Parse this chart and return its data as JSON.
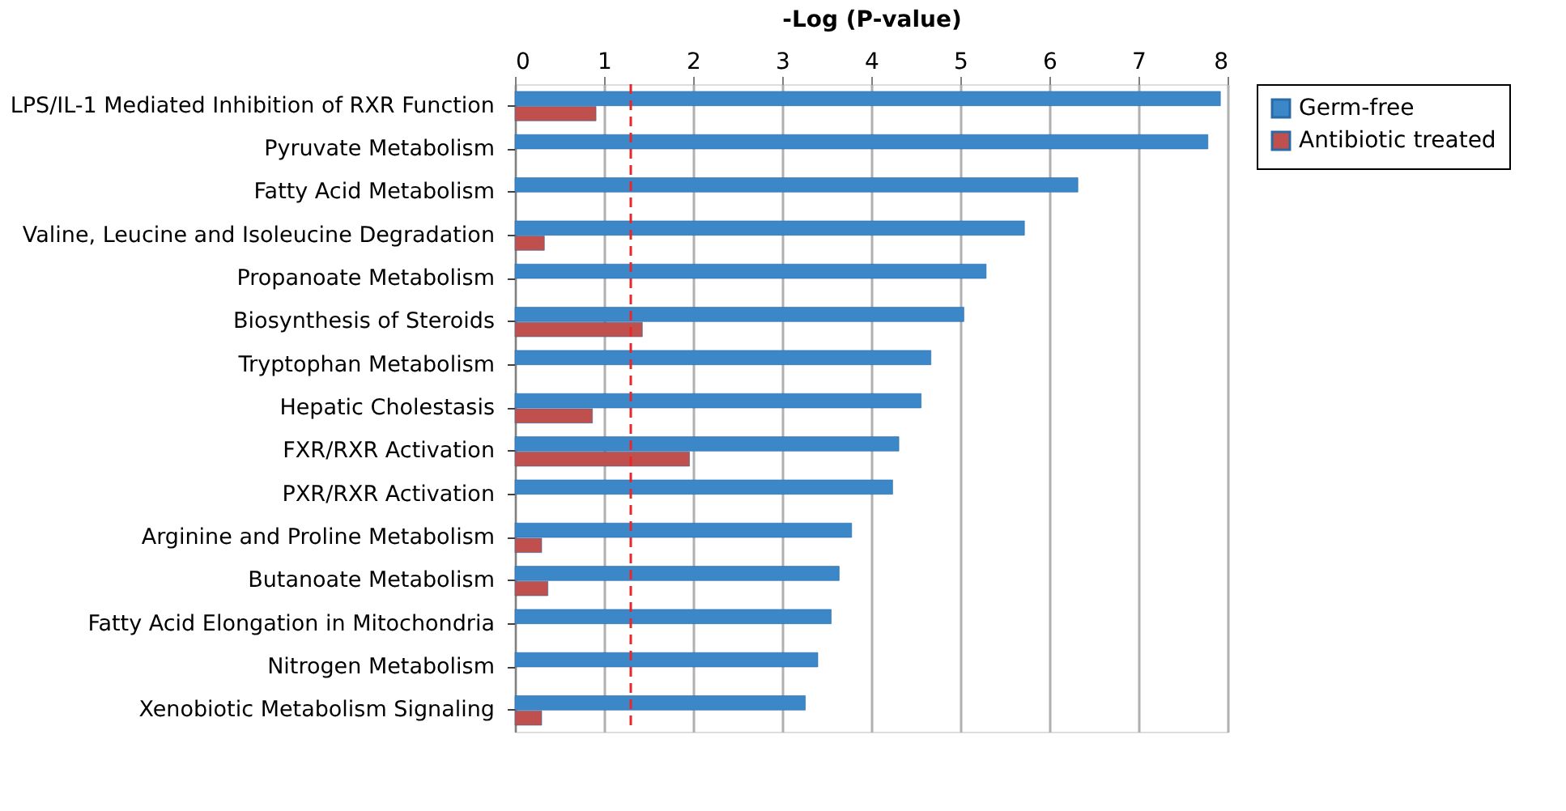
{
  "chart_data": {
    "type": "bar",
    "orientation": "horizontal",
    "xlabel": "-Log (P-value)",
    "categories": [
      "LPS/IL-1 Mediated Inhibition of RXR Function",
      "Pyruvate Metabolism",
      "Fatty Acid Metabolism",
      "Valine, Leucine and Isoleucine Degradation",
      "Propanoate Metabolism",
      "Biosynthesis of Steroids",
      "Tryptophan Metabolism",
      "Hepatic Cholestasis",
      "FXR/RXR Activation",
      "PXR/RXR Activation",
      "Arginine and Proline Metabolism",
      "Butanoate Metabolism",
      "Fatty Acid Elongation in Mitochondria",
      "Nitrogen Metabolism",
      "Xenobiotic Metabolism Signaling"
    ],
    "series": [
      {
        "name": "Germ-free",
        "color": "#3b87c8",
        "values": [
          7.92,
          7.78,
          6.32,
          5.72,
          5.29,
          5.04,
          4.67,
          4.56,
          4.31,
          4.24,
          3.78,
          3.64,
          3.55,
          3.4,
          3.26
        ]
      },
      {
        "name": "Antibiotic treated",
        "color": "#c0504d",
        "values": [
          0.91,
          null,
          null,
          0.33,
          null,
          1.43,
          null,
          0.87,
          1.96,
          null,
          0.3,
          0.37,
          null,
          null,
          0.3
        ]
      }
    ],
    "xlim": [
      0,
      8
    ],
    "xticks": [
      0,
      1,
      2,
      3,
      4,
      5,
      6,
      7,
      8
    ],
    "grid": "x",
    "legend": "right",
    "ref_lines": [
      {
        "axis": "x",
        "value": 1.3,
        "color": "#e8262b",
        "line_style": "dashed"
      }
    ]
  }
}
